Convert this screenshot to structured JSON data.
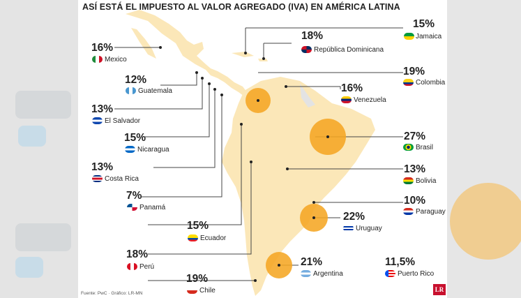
{
  "title": "ASÍ ESTÁ EL IMPUESTO AL VALOR AGREGADO (IVA) EN AMÉRICA LATINA",
  "source": "Fuente: PwC · Gráfico: LR-MN",
  "logo": "LR",
  "accent_color": "#f5a623",
  "map_color": "#fbe7b8",
  "countries": [
    {
      "key": "mexico",
      "pct": "16%",
      "name": "Mexico",
      "flag": "flag-mexico-icon"
    },
    {
      "key": "guatemala",
      "pct": "12%",
      "name": "Guatemala",
      "flag": "flag-guatemala-icon"
    },
    {
      "key": "el_salvador",
      "pct": "13%",
      "name": "El Salvador",
      "flag": "flag-el-salvador-icon"
    },
    {
      "key": "nicaragua",
      "pct": "15%",
      "name": "Nicaragua",
      "flag": "flag-nicaragua-icon"
    },
    {
      "key": "costa_rica",
      "pct": "13%",
      "name": "Costa Rica",
      "flag": "flag-costa-rica-icon"
    },
    {
      "key": "panama",
      "pct": "7%",
      "name": "Panamá",
      "flag": "flag-panama-icon"
    },
    {
      "key": "ecuador",
      "pct": "15%",
      "name": "Ecuador",
      "flag": "flag-ecuador-icon"
    },
    {
      "key": "peru",
      "pct": "18%",
      "name": "Perú",
      "flag": "flag-peru-icon"
    },
    {
      "key": "chile",
      "pct": "19%",
      "name": "Chile",
      "flag": "flag-chile-icon"
    },
    {
      "key": "jamaica",
      "pct": "15%",
      "name": "Jamaica",
      "flag": "flag-jamaica-icon"
    },
    {
      "key": "dominicana",
      "pct": "18%",
      "name": "República Dominicana",
      "flag": "flag-dominican-republic-icon"
    },
    {
      "key": "colombia",
      "pct": "19%",
      "name": "Colombia",
      "flag": "flag-colombia-icon"
    },
    {
      "key": "venezuela",
      "pct": "16%",
      "name": "Venezuela",
      "flag": "flag-venezuela-icon"
    },
    {
      "key": "brasil",
      "pct": "27%",
      "name": "Brasil",
      "flag": "flag-brazil-icon"
    },
    {
      "key": "bolivia",
      "pct": "13%",
      "name": "Bolivia",
      "flag": "flag-bolivia-icon"
    },
    {
      "key": "paraguay",
      "pct": "10%",
      "name": "Paraguay",
      "flag": "flag-paraguay-icon"
    },
    {
      "key": "uruguay",
      "pct": "22%",
      "name": "Uruguay",
      "flag": "flag-uruguay-icon"
    },
    {
      "key": "argentina",
      "pct": "21%",
      "name": "Argentina",
      "flag": "flag-argentina-icon"
    },
    {
      "key": "puerto_rico",
      "pct": "11,5%",
      "name": "Puerto Rico",
      "flag": "flag-puerto-rico-icon"
    }
  ]
}
